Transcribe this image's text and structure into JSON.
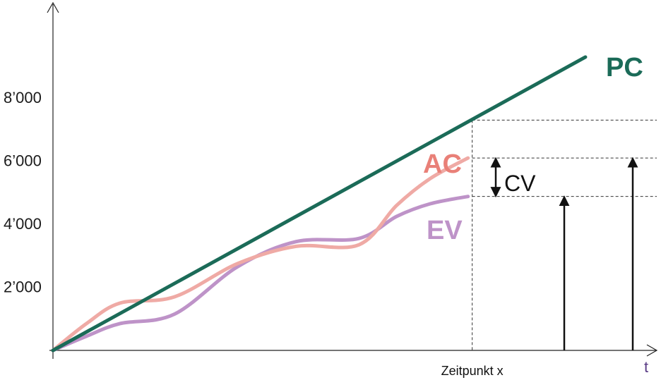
{
  "chart_data": {
    "type": "line",
    "x_axis": {
      "label": "t",
      "marker_label": "Zeitpunkt x"
    },
    "y_ticks": [
      {
        "value": 2000,
        "label": "2’000"
      },
      {
        "value": 4000,
        "label": "4’000"
      },
      {
        "value": 6000,
        "label": "6’000"
      },
      {
        "value": 8000,
        "label": "8’000"
      }
    ],
    "ylim": [
      0,
      9500
    ],
    "xlim": [
      0,
      1.42
    ],
    "marker_x": 1.0,
    "series": [
      {
        "name": "PC",
        "color": "#1b6b58",
        "x": [
          0,
          1.27
        ],
        "y": [
          0,
          9300
        ]
      },
      {
        "name": "AC",
        "color": "#efaaa5",
        "x": [
          0,
          0.08,
          0.16,
          0.29,
          0.44,
          0.58,
          0.73,
          0.82,
          0.9,
          0.99
        ],
        "y": [
          0,
          850,
          1500,
          1700,
          2750,
          3300,
          3350,
          4600,
          5450,
          6100
        ]
      },
      {
        "name": "EV",
        "color": "#be93c8",
        "x": [
          0,
          0.08,
          0.16,
          0.29,
          0.44,
          0.58,
          0.73,
          0.82,
          0.9,
          0.99
        ],
        "y": [
          0,
          450,
          850,
          1150,
          2650,
          3450,
          3550,
          4250,
          4650,
          4880
        ]
      }
    ],
    "annotations": {
      "cv_label": "CV",
      "pc_label": "PC",
      "ac_label": "AC",
      "ev_label": "EV",
      "ref_levels": [
        7300,
        6100,
        4880
      ]
    }
  }
}
